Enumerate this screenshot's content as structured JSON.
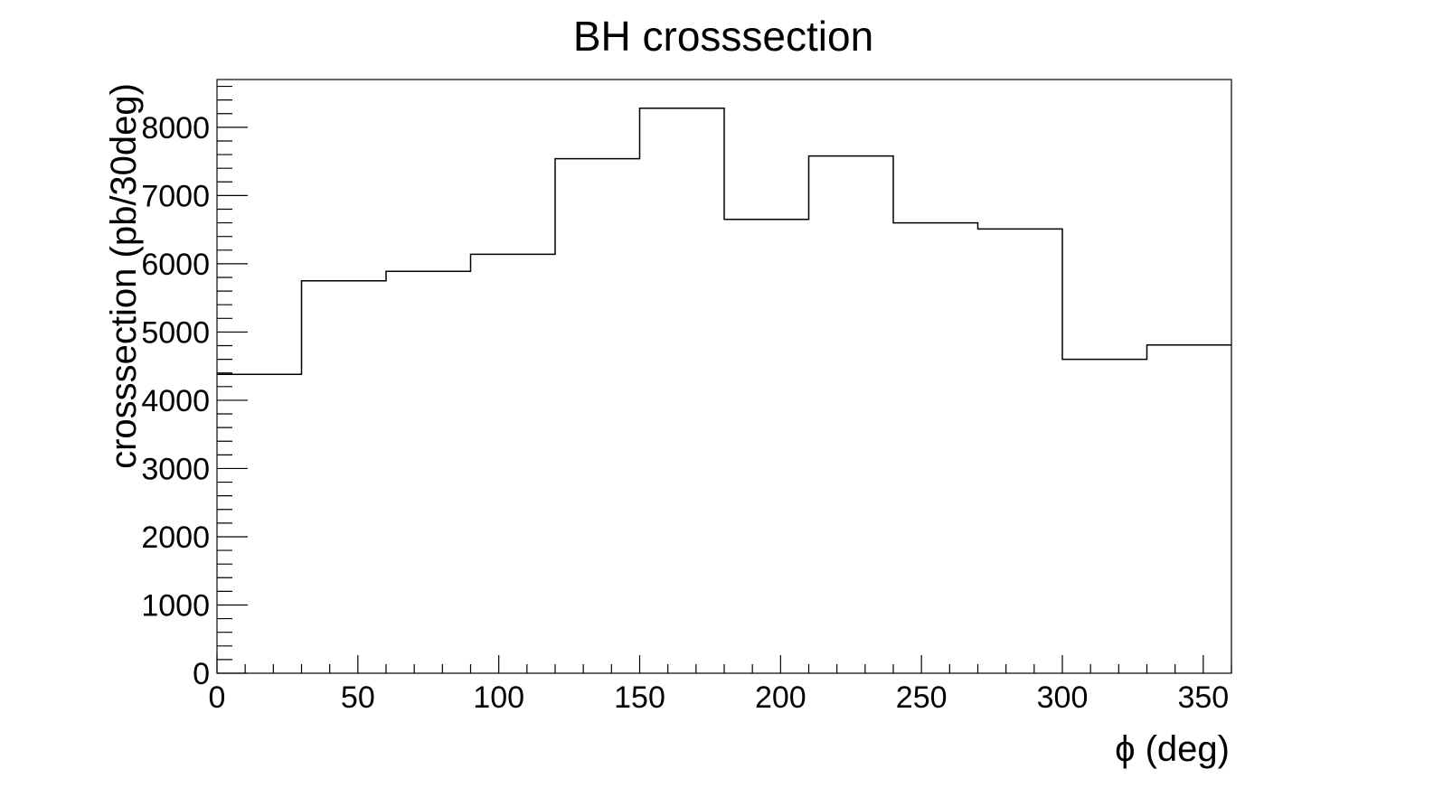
{
  "chart_data": {
    "type": "histogram",
    "title": "BH crosssection",
    "xlabel": "ϕ (deg)",
    "ylabel": "crosssection (pb/30deg)",
    "bin_edges": [
      0,
      30,
      60,
      90,
      120,
      150,
      180,
      210,
      240,
      270,
      300,
      330,
      360
    ],
    "values": [
      4380,
      5750,
      5890,
      6140,
      7540,
      8280,
      6650,
      7580,
      6600,
      6510,
      4600,
      4810
    ],
    "xlim": [
      0,
      360
    ],
    "ylim": [
      0,
      8700
    ],
    "x_ticks": [
      0,
      50,
      100,
      150,
      200,
      250,
      300,
      350
    ],
    "y_ticks": [
      0,
      1000,
      2000,
      3000,
      4000,
      5000,
      6000,
      7000,
      8000
    ],
    "grid": false,
    "legend": "none"
  }
}
